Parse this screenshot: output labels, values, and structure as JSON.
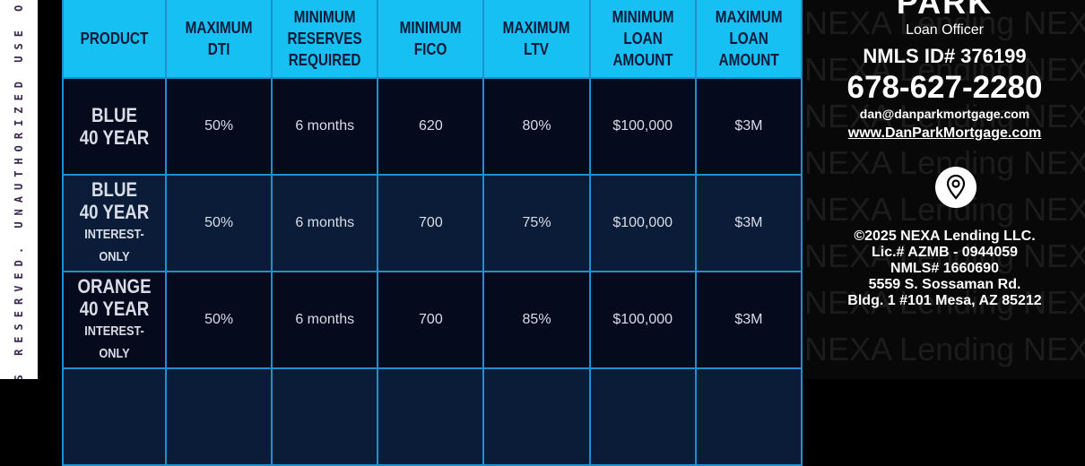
{
  "side_notice": "GHTS RESERVED. UNAUTHORIZED USE OR R",
  "table": {
    "headers": [
      "PRODUCT",
      "MAXIMUM DTI",
      "MINIMUM RESERVES REQUIRED",
      "MINIMUM FICO",
      "MAXIMUM LTV",
      "MINIMUM LOAN AMOUNT",
      "MAXIMUM LOAN AMOUNT"
    ],
    "rows": [
      {
        "product": [
          "BLUE",
          "40 YEAR",
          ""
        ],
        "cells": [
          "50%",
          "6 months",
          "620",
          "80%",
          "$100,000",
          "$3M"
        ]
      },
      {
        "product": [
          "BLUE",
          "40 YEAR",
          "INTEREST-ONLY"
        ],
        "cells": [
          "50%",
          "6 months",
          "700",
          "75%",
          "$100,000",
          "$3M"
        ]
      },
      {
        "product": [
          "ORANGE",
          "40 YEAR",
          "INTEREST-ONLY"
        ],
        "cells": [
          "50%",
          "6 months",
          "700",
          "85%",
          "$100,000",
          "$3M"
        ]
      }
    ]
  },
  "contact": {
    "name": "PARK",
    "title": "Loan Officer",
    "nmls": "NMLS ID# 376199",
    "phone": "678-627-2280",
    "email": "dan@danparkmortgage.com",
    "website": "www.DanParkMortgage.com",
    "location_icon": "map-pin-icon",
    "company": [
      "©2025 NEXA Lending LLC.",
      "Lic.# AZMB - 0944059",
      "NMLS# 1660690",
      "5559 S. Sossaman Rd.",
      "Bldg. 1 #101 Mesa, AZ 85212"
    ],
    "watermark": "NEXA Lending"
  },
  "colors": {
    "header": "#16c0f2",
    "product_text": "#2db8f0",
    "border": "#1f8fd0"
  }
}
